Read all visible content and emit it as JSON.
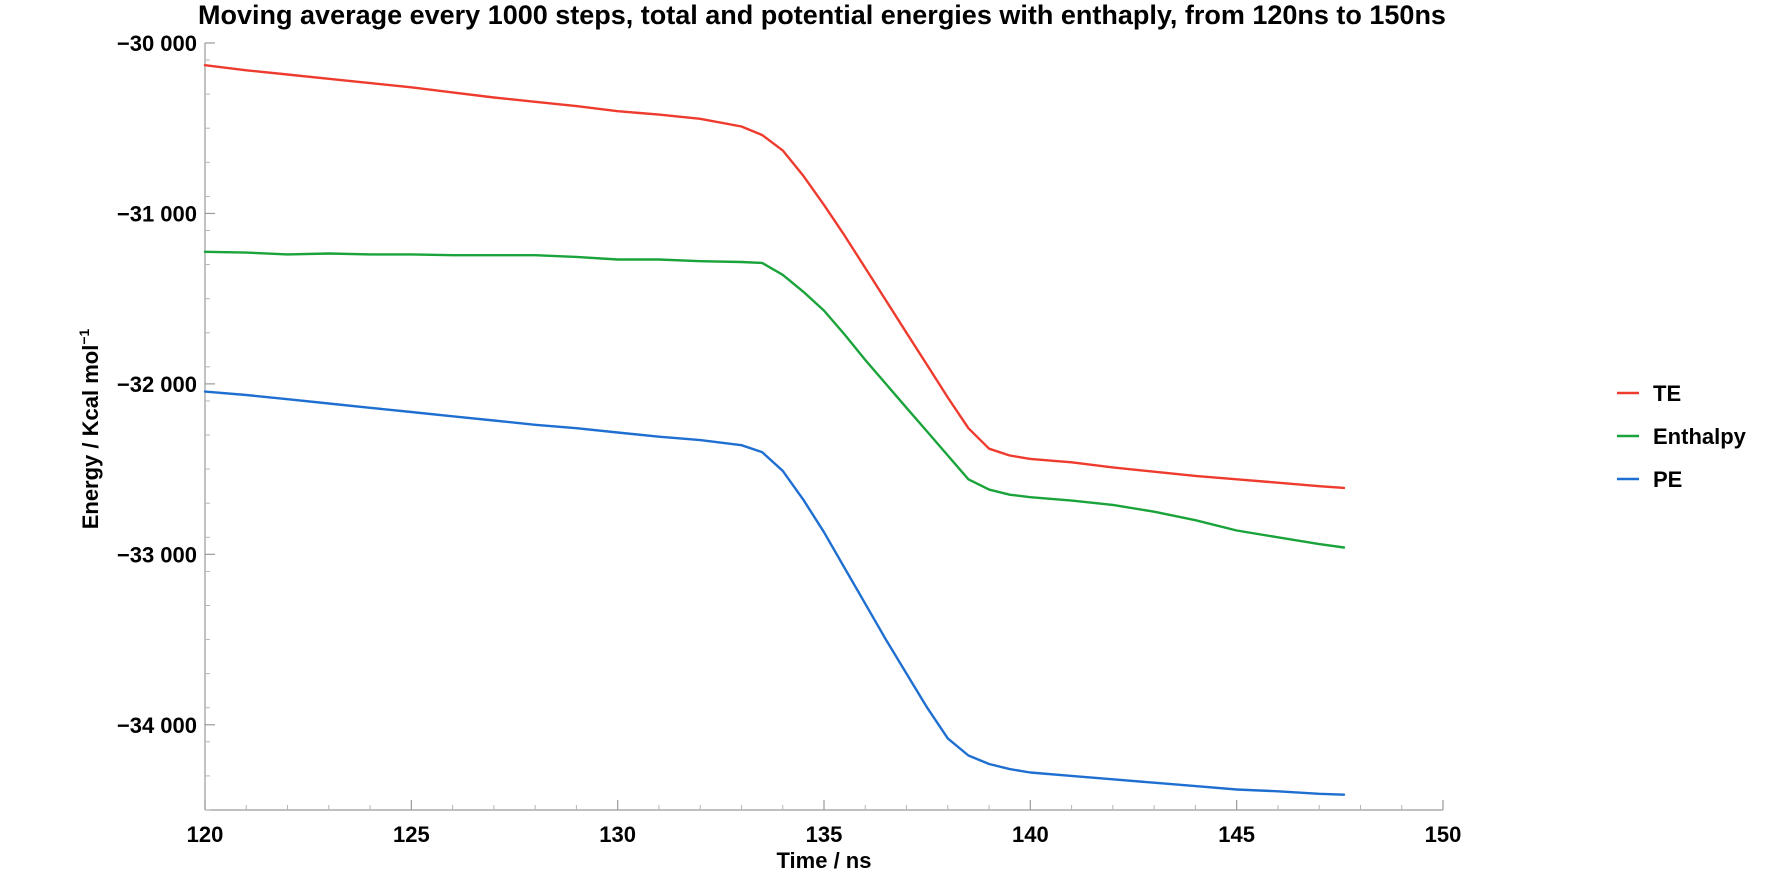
{
  "chart_data": {
    "type": "line",
    "title": "Moving average every 1000 steps, total and potential energies with enthaply, from 120ns to 150ns",
    "xlabel": "Time / ns",
    "ylabel": "Energy / Kcal mol",
    "ylabel_sup": "−1",
    "xlim": [
      120,
      150
    ],
    "ylim": [
      -34500,
      -30000
    ],
    "x_ticks": [
      120,
      125,
      130,
      135,
      140,
      145,
      150
    ],
    "x_tick_labels": [
      "120",
      "125",
      "130",
      "135",
      "140",
      "145",
      "150"
    ],
    "y_ticks": [
      -30000,
      -31000,
      -32000,
      -33000,
      -34000
    ],
    "y_tick_labels": [
      "−30 000",
      "−31 000",
      "−32 000",
      "−33 000",
      "−34 000"
    ],
    "grid": false,
    "legend_position": "right",
    "series": [
      {
        "name": "TE",
        "color": "#ee3b2e",
        "points": [
          [
            120,
            -30130
          ],
          [
            121,
            -30160
          ],
          [
            122,
            -30185
          ],
          [
            123,
            -30210
          ],
          [
            124,
            -30235
          ],
          [
            125,
            -30260
          ],
          [
            126,
            -30290
          ],
          [
            127,
            -30320
          ],
          [
            128,
            -30345
          ],
          [
            129,
            -30370
          ],
          [
            130,
            -30400
          ],
          [
            131,
            -30420
          ],
          [
            132,
            -30445
          ],
          [
            133,
            -30490
          ],
          [
            133.5,
            -30540
          ],
          [
            134,
            -30630
          ],
          [
            134.5,
            -30780
          ],
          [
            135,
            -30950
          ],
          [
            135.5,
            -31130
          ],
          [
            136,
            -31320
          ],
          [
            136.5,
            -31510
          ],
          [
            137,
            -31700
          ],
          [
            137.5,
            -31890
          ],
          [
            138,
            -32080
          ],
          [
            138.5,
            -32260
          ],
          [
            139,
            -32380
          ],
          [
            139.5,
            -32420
          ],
          [
            140,
            -32440
          ],
          [
            141,
            -32460
          ],
          [
            142,
            -32490
          ],
          [
            143,
            -32515
          ],
          [
            144,
            -32540
          ],
          [
            145,
            -32560
          ],
          [
            146,
            -32580
          ],
          [
            147,
            -32600
          ],
          [
            147.6,
            -32610
          ]
        ]
      },
      {
        "name": "Enthalpy",
        "color": "#1aa33a",
        "points": [
          [
            120,
            -31225
          ],
          [
            121,
            -31230
          ],
          [
            122,
            -31240
          ],
          [
            123,
            -31235
          ],
          [
            124,
            -31240
          ],
          [
            125,
            -31240
          ],
          [
            126,
            -31245
          ],
          [
            127,
            -31245
          ],
          [
            128,
            -31245
          ],
          [
            129,
            -31255
          ],
          [
            130,
            -31270
          ],
          [
            131,
            -31270
          ],
          [
            132,
            -31280
          ],
          [
            133,
            -31285
          ],
          [
            133.5,
            -31290
          ],
          [
            134,
            -31360
          ],
          [
            134.5,
            -31460
          ],
          [
            135,
            -31570
          ],
          [
            135.5,
            -31710
          ],
          [
            136,
            -31860
          ],
          [
            136.5,
            -32000
          ],
          [
            137,
            -32140
          ],
          [
            137.5,
            -32280
          ],
          [
            138,
            -32420
          ],
          [
            138.5,
            -32560
          ],
          [
            139,
            -32620
          ],
          [
            139.5,
            -32650
          ],
          [
            140,
            -32665
          ],
          [
            141,
            -32685
          ],
          [
            142,
            -32710
          ],
          [
            143,
            -32750
          ],
          [
            144,
            -32800
          ],
          [
            145,
            -32860
          ],
          [
            146,
            -32900
          ],
          [
            147,
            -32940
          ],
          [
            147.6,
            -32960
          ]
        ]
      },
      {
        "name": "PE",
        "color": "#1f6fd1",
        "points": [
          [
            120,
            -32045
          ],
          [
            121,
            -32065
          ],
          [
            122,
            -32090
          ],
          [
            123,
            -32115
          ],
          [
            124,
            -32140
          ],
          [
            125,
            -32165
          ],
          [
            126,
            -32190
          ],
          [
            127,
            -32215
          ],
          [
            128,
            -32240
          ],
          [
            129,
            -32260
          ],
          [
            130,
            -32285
          ],
          [
            131,
            -32310
          ],
          [
            132,
            -32330
          ],
          [
            133,
            -32360
          ],
          [
            133.5,
            -32400
          ],
          [
            134,
            -32510
          ],
          [
            134.5,
            -32680
          ],
          [
            135,
            -32870
          ],
          [
            135.5,
            -33080
          ],
          [
            136,
            -33290
          ],
          [
            136.5,
            -33500
          ],
          [
            137,
            -33700
          ],
          [
            137.5,
            -33900
          ],
          [
            138,
            -34080
          ],
          [
            138.5,
            -34180
          ],
          [
            139,
            -34230
          ],
          [
            139.5,
            -34260
          ],
          [
            140,
            -34280
          ],
          [
            141,
            -34300
          ],
          [
            142,
            -34320
          ],
          [
            143,
            -34340
          ],
          [
            144,
            -34360
          ],
          [
            145,
            -34380
          ],
          [
            146,
            -34390
          ],
          [
            147,
            -34405
          ],
          [
            147.6,
            -34410
          ]
        ]
      }
    ]
  }
}
